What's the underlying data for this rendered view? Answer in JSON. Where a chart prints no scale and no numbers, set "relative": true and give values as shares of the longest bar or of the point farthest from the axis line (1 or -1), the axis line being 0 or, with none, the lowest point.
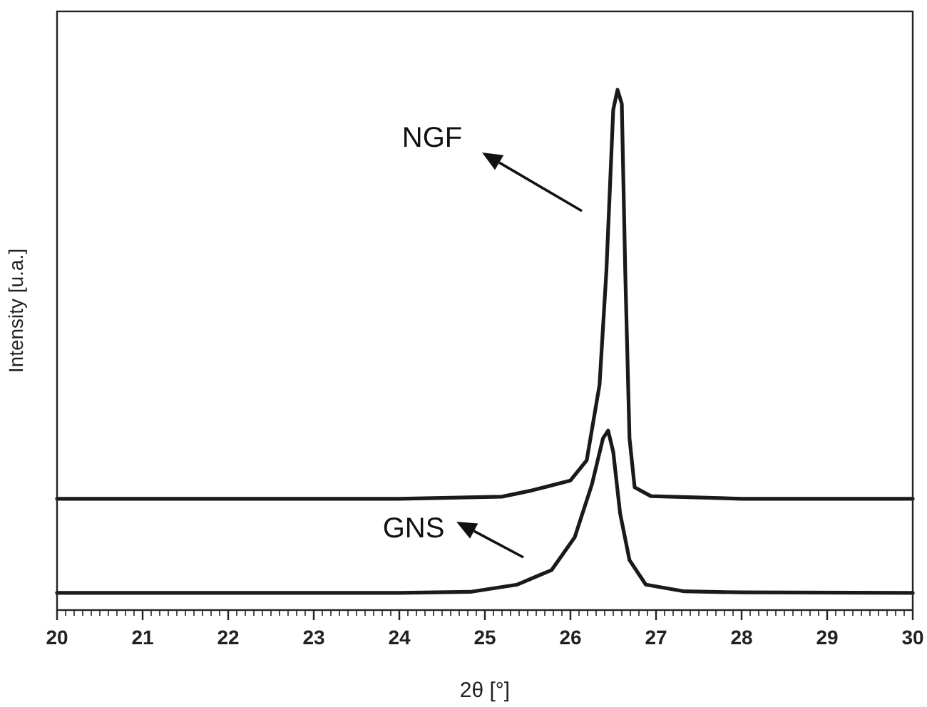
{
  "chart_data": {
    "type": "line",
    "relative": true,
    "xlabel": "2θ [°]",
    "ylabel": "Intensity [u.a.]",
    "xlim": [
      20,
      30
    ],
    "xticks": [
      20,
      21,
      22,
      23,
      24,
      25,
      26,
      27,
      28,
      29,
      30
    ],
    "grid": false,
    "line_style": "solid",
    "annotations": [
      "NGF",
      "GNS"
    ],
    "series": [
      {
        "color": "#1a1a1a",
        "x": [
          20,
          24,
          25.2,
          25.55,
          26.0,
          26.19,
          26.34,
          26.42,
          26.5,
          26.55,
          26.6,
          26.64,
          26.69,
          26.75,
          26.94,
          28,
          30
        ],
        "values": [
          0.214,
          0.214,
          0.218,
          0.23,
          0.249,
          0.288,
          0.433,
          0.652,
          0.962,
          1.0,
          0.973,
          0.652,
          0.33,
          0.236,
          0.219,
          0.214,
          0.214
        ]
      },
      {
        "color": "#1a1a1a",
        "x": [
          20,
          24,
          24.83,
          25.38,
          25.78,
          26.05,
          26.25,
          26.38,
          26.44,
          26.5,
          26.58,
          26.69,
          26.88,
          27.33,
          28,
          30
        ],
        "values": [
          0.033,
          0.033,
          0.035,
          0.049,
          0.077,
          0.14,
          0.241,
          0.33,
          0.345,
          0.304,
          0.186,
          0.096,
          0.049,
          0.036,
          0.034,
          0.033
        ]
      }
    ]
  }
}
